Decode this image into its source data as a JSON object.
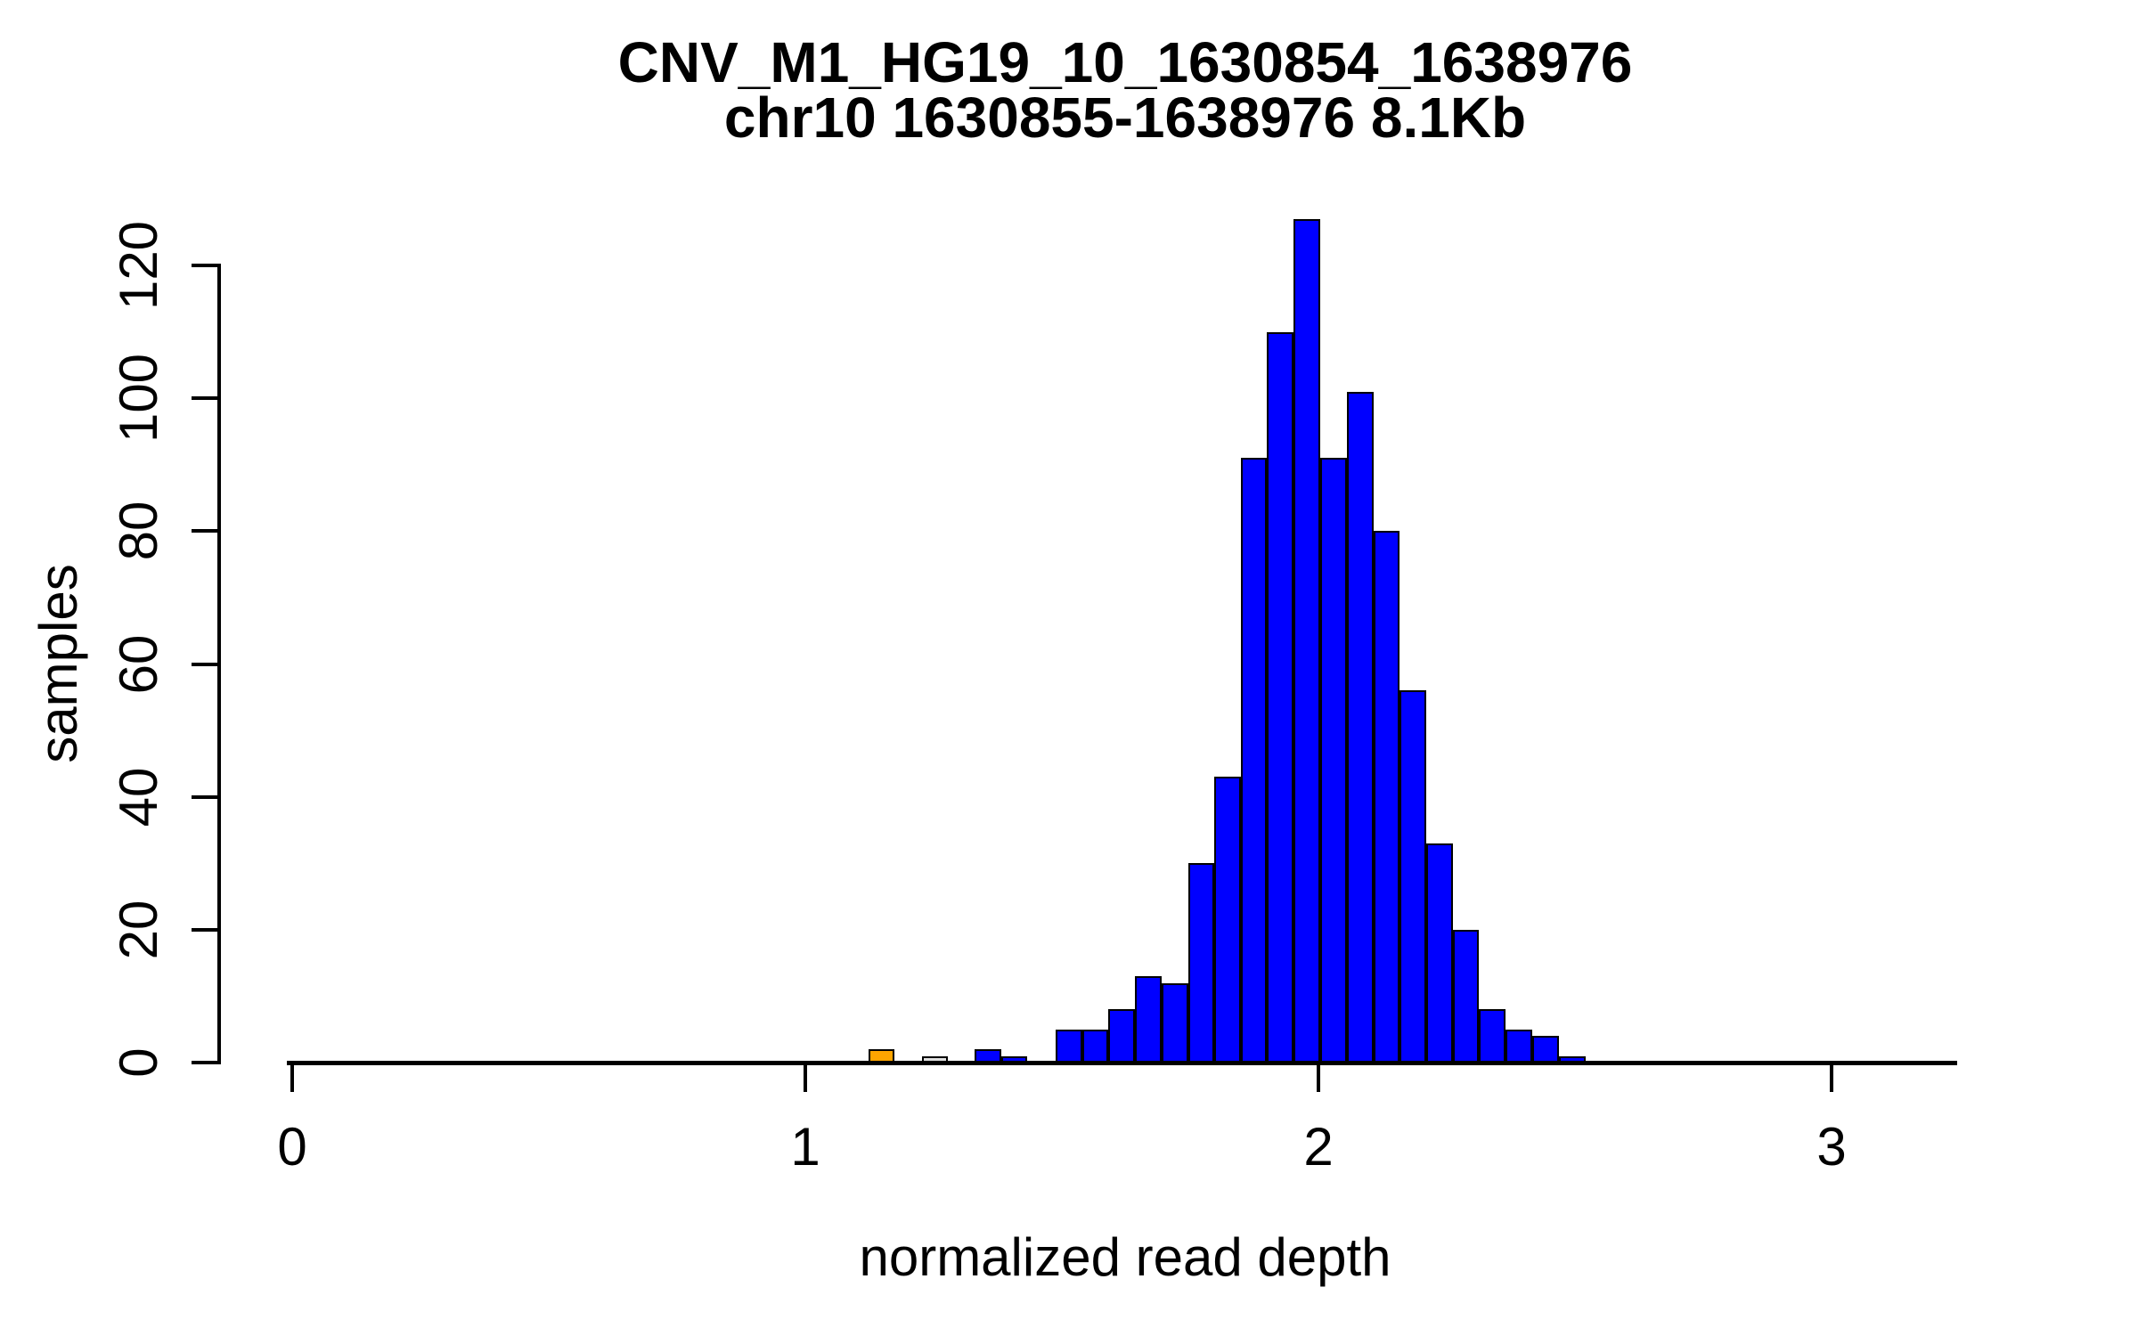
{
  "title": {
    "line1": "CNV_M1_HG19_10_1630854_1638976",
    "line2": "chr10 1630855-1638976 8.1Kb"
  },
  "axes": {
    "x": {
      "label": "normalized read depth",
      "ticks": [
        0,
        1,
        2,
        3
      ],
      "line_extent": [
        0.0,
        3.245
      ]
    },
    "y": {
      "label": "samples",
      "ticks": [
        0,
        20,
        40,
        60,
        80,
        100,
        120
      ],
      "line_extent": [
        0,
        120
      ]
    }
  },
  "colors": {
    "blue": "#0000FF",
    "orange": "#FFA500",
    "white": "#E0E0E0",
    "border": "#000000",
    "axis": "#000000",
    "background": "#FFFFFF"
  },
  "chart_data": {
    "type": "bar",
    "subtype": "histogram",
    "title": "CNV_M1_HG19_10_1630854_1638976",
    "subtitle": "chr10 1630855-1638976 8.1Kb",
    "xlabel": "normalized read depth",
    "ylabel": "samples",
    "xlim": [
      0,
      3.25
    ],
    "ylim": [
      0,
      127
    ],
    "grid": false,
    "legend": "none",
    "bin_width": 0.05,
    "bars": [
      {
        "from": 1.124,
        "to": 1.174,
        "count": 2,
        "color": "orange"
      },
      {
        "from": 1.227,
        "to": 1.277,
        "count": 1,
        "color": "white"
      },
      {
        "from": 1.33,
        "to": 1.382,
        "count": 2,
        "color": "blue"
      },
      {
        "from": 1.382,
        "to": 1.432,
        "count": 1,
        "color": "blue"
      },
      {
        "from": 1.488,
        "to": 1.54,
        "count": 5,
        "color": "blue"
      },
      {
        "from": 1.54,
        "to": 1.591,
        "count": 5,
        "color": "blue"
      },
      {
        "from": 1.591,
        "to": 1.643,
        "count": 8,
        "color": "blue"
      },
      {
        "from": 1.643,
        "to": 1.694,
        "count": 13,
        "color": "blue"
      },
      {
        "from": 1.694,
        "to": 1.746,
        "count": 12,
        "color": "blue"
      },
      {
        "from": 1.746,
        "to": 1.797,
        "count": 30,
        "color": "blue"
      },
      {
        "from": 1.797,
        "to": 1.849,
        "count": 43,
        "color": "blue"
      },
      {
        "from": 1.849,
        "to": 1.9,
        "count": 91,
        "color": "blue"
      },
      {
        "from": 1.9,
        "to": 1.952,
        "count": 110,
        "color": "blue"
      },
      {
        "from": 1.952,
        "to": 2.003,
        "count": 127,
        "color": "blue"
      },
      {
        "from": 2.003,
        "to": 2.055,
        "count": 91,
        "color": "blue"
      },
      {
        "from": 2.055,
        "to": 2.107,
        "count": 101,
        "color": "blue"
      },
      {
        "from": 2.107,
        "to": 2.158,
        "count": 80,
        "color": "blue"
      },
      {
        "from": 2.158,
        "to": 2.21,
        "count": 56,
        "color": "blue"
      },
      {
        "from": 2.21,
        "to": 2.262,
        "count": 33,
        "color": "blue"
      },
      {
        "from": 2.262,
        "to": 2.313,
        "count": 20,
        "color": "blue"
      },
      {
        "from": 2.313,
        "to": 2.365,
        "count": 8,
        "color": "blue"
      },
      {
        "from": 2.365,
        "to": 2.417,
        "count": 5,
        "color": "blue"
      },
      {
        "from": 2.417,
        "to": 2.468,
        "count": 4,
        "color": "blue"
      },
      {
        "from": 2.468,
        "to": 2.52,
        "count": 1,
        "color": "blue"
      }
    ]
  }
}
